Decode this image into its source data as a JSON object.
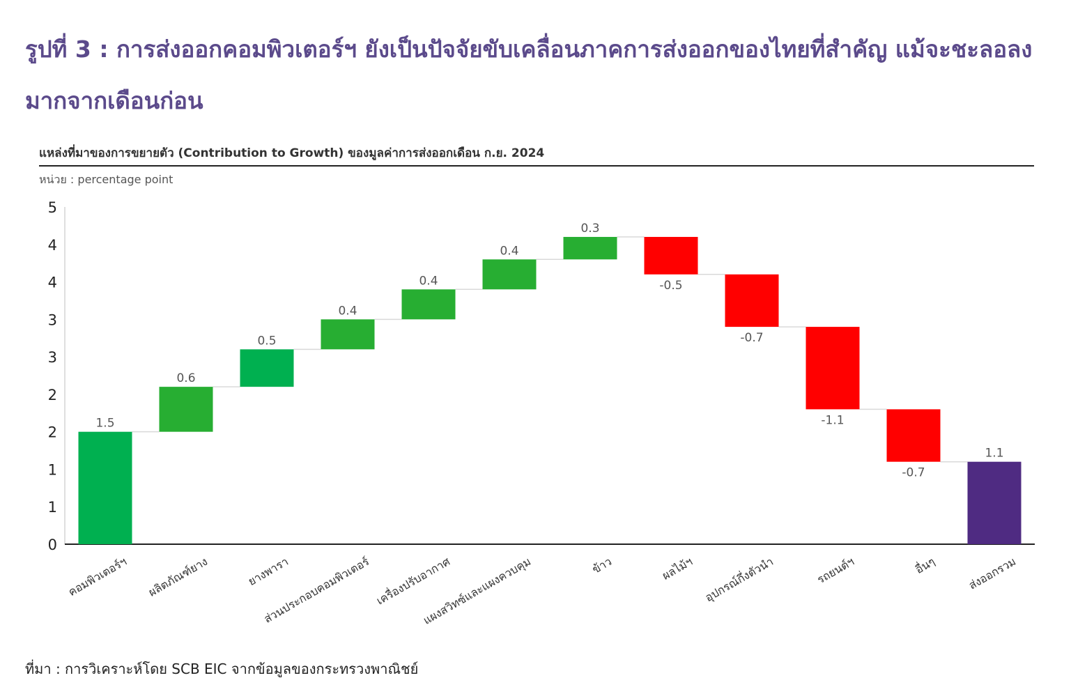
{
  "title": "รูปที่ 3 : การส่งออกคอมพิวเตอร์ฯ ยังเป็นปัจจัยขับเคลื่อนภาคการส่งออกของไทยที่สำคัญ แม้จะชะลอลงมากจากเดือนก่อน",
  "chart_data": {
    "type": "bar",
    "subtype": "waterfall",
    "subtitle": "แหล่งที่มาของการขยายตัว (Contribution to Growth) ของมูลค่าการส่งออกเดือน ก.ย. 2024",
    "unit_label": "หน่วย : percentage point",
    "categories": [
      "คอมพิวเตอร์ฯ",
      "ผลิตภัณฑ์ยาง",
      "ยางพารา",
      "ส่วนประกอบคอมพิวเตอร์",
      "เครื่องปรับอากาศ",
      "แผงสวิทซ์และแผงควบคุม",
      "ข้าว",
      "ผลไม้ฯ",
      "อุปกรณ์กึ่งตัวนำ",
      "รถยนต์ฯ",
      "อื่นๆ",
      "ส่งออกรวม"
    ],
    "values": [
      1.5,
      0.6,
      0.5,
      0.4,
      0.4,
      0.4,
      0.3,
      -0.5,
      -0.7,
      -1.1,
      -0.7,
      1.1
    ],
    "value_labels": [
      "1.5",
      "0.6",
      "0.5",
      "0.4",
      "0.4",
      "0.4",
      "0.3",
      "-0.5",
      "-0.7",
      "-1.1",
      "-0.7",
      "1.1"
    ],
    "is_total": [
      false,
      false,
      false,
      false,
      false,
      false,
      false,
      false,
      false,
      false,
      false,
      true
    ],
    "ylim": [
      0,
      4.5
    ],
    "ytick_values": [
      0,
      0.5,
      1,
      1.5,
      2,
      2.5,
      3,
      3.5,
      4,
      4.5
    ],
    "ytick_labels": [
      "0",
      "1",
      "1",
      "2",
      "2",
      "3",
      "3",
      "4",
      "4",
      "5"
    ],
    "grid": false,
    "legend": "none",
    "colors": {
      "increase": [
        "#00b050",
        "#27ae32",
        "#00b050",
        "#27ae32",
        "#27ae32",
        "#27ae32",
        "#27ae32"
      ],
      "decrease": "#ff0000",
      "total": "#4f2b82",
      "connector": "#d9d9d9",
      "title": "#5b4a8b"
    }
  },
  "source": "ที่มา : การวิเคราะห์โดย SCB EIC จากข้อมูลของกระทรวงพาณิชย์"
}
